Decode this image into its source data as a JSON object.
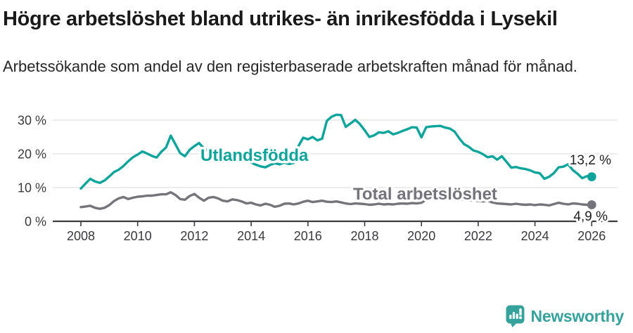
{
  "header": {
    "title": "Högre arbetslöshet bland utrikes- än inrikesfödda i Lysekil",
    "subtitle": "Arbetssökande som andel av den registerbaserade arbetskraften månad för månad."
  },
  "footer": {
    "brand": "Newsworthy"
  },
  "colors": {
    "accent_teal": "#0da59b",
    "line_gray": "#74747a",
    "logo_teal": "#35a39c",
    "grid": "#d9d9d9",
    "axis": "#3c3c40"
  },
  "chart_data": {
    "type": "line",
    "unit": "%",
    "x_start_year": 2008,
    "x_step_months": 2,
    "xticks": [
      2008,
      2010,
      2012,
      2014,
      2016,
      2018,
      2020,
      2022,
      2024,
      2026
    ],
    "yticks": [
      0,
      10,
      20,
      30
    ],
    "ylim": [
      0,
      33
    ],
    "grid": "horizontal-only",
    "legend_position": "inline-labels",
    "series": [
      {
        "name": "Utlandsfödda",
        "color": "#0da59b",
        "end_label": "13,2 %",
        "end_value": 13.2,
        "values": [
          9.7,
          11.2,
          12.6,
          11.8,
          11.4,
          12.1,
          13.3,
          14.6,
          15.3,
          16.4,
          17.8,
          19.0,
          19.8,
          20.7,
          20.1,
          19.4,
          18.9,
          20.6,
          21.9,
          25.4,
          22.8,
          20.2,
          19.3,
          21.2,
          22.3,
          23.2,
          21.6,
          20.9,
          20.5,
          20.1,
          19.7,
          19.4,
          19.8,
          19.2,
          18.6,
          18.0,
          17.4,
          16.8,
          16.3,
          16.0,
          16.7,
          17.2,
          16.9,
          17.4,
          17.0,
          17.3,
          22.3,
          24.8,
          24.3,
          25.0,
          24.0,
          24.5,
          29.8,
          31.0,
          31.6,
          31.5,
          28.0,
          29.0,
          30.1,
          28.8,
          27.0,
          25.0,
          25.5,
          26.4,
          26.2,
          26.7,
          25.8,
          26.2,
          26.8,
          27.3,
          27.9,
          27.8,
          24.9,
          27.9,
          28.1,
          28.2,
          28.3,
          27.8,
          27.5,
          26.6,
          24.6,
          22.9,
          22.1,
          21.0,
          20.6,
          19.9,
          19.0,
          19.3,
          18.3,
          19.3,
          17.6,
          15.9,
          16.1,
          15.7,
          15.5,
          15.1,
          14.5,
          14.3,
          12.6,
          13.2,
          14.3,
          16.0,
          16.2,
          16.9,
          15.2,
          14.1,
          12.8,
          13.4,
          13.2
        ]
      },
      {
        "name": "Total arbetslöshet",
        "color": "#74747a",
        "end_label": "4,9 %",
        "end_value": 4.9,
        "values": [
          4.2,
          4.4,
          4.6,
          4.0,
          3.7,
          4.0,
          4.8,
          6.0,
          6.8,
          7.2,
          6.6,
          7.0,
          7.3,
          7.4,
          7.6,
          7.6,
          7.8,
          8.0,
          8.0,
          8.6,
          7.8,
          6.6,
          6.4,
          7.5,
          8.1,
          7.0,
          6.1,
          7.0,
          7.2,
          6.8,
          6.1,
          5.9,
          6.5,
          6.3,
          5.9,
          5.3,
          5.5,
          5.0,
          4.7,
          5.2,
          4.9,
          4.3,
          4.6,
          5.2,
          5.3,
          5.0,
          5.3,
          5.8,
          6.1,
          5.7,
          5.9,
          6.1,
          5.8,
          5.7,
          5.9,
          5.6,
          5.3,
          5.1,
          5.3,
          5.2,
          5.1,
          4.9,
          5.0,
          5.2,
          5.0,
          5.1,
          5.0,
          5.2,
          5.3,
          5.2,
          5.4,
          5.3,
          5.5,
          6.4,
          7.2,
          7.4,
          7.2,
          7.0,
          7.1,
          6.9,
          6.6,
          6.4,
          6.2,
          6.1,
          6.0,
          5.9,
          6.1,
          5.6,
          5.3,
          5.2,
          5.1,
          5.0,
          5.2,
          5.0,
          4.9,
          5.0,
          4.8,
          5.0,
          4.9,
          4.7,
          5.1,
          5.5,
          5.2,
          5.0,
          5.3,
          5.2,
          5.0,
          4.9,
          4.9
        ]
      }
    ]
  }
}
